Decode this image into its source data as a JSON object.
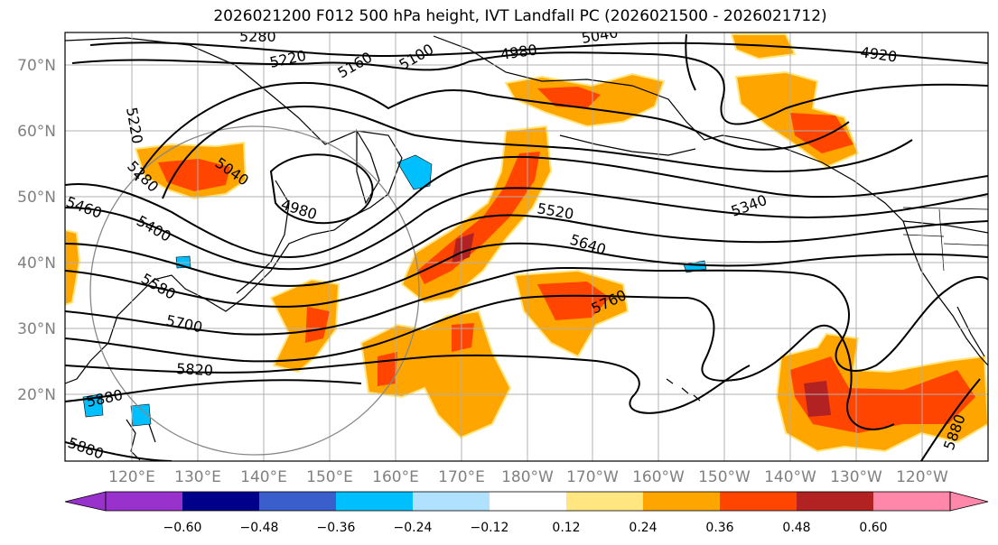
{
  "title": "2026021200 F012 500 hPa height, IVT Landfall PC (2026021500 - 2026021712)",
  "map": {
    "lat_labels": [
      "70°N",
      "60°N",
      "50°N",
      "40°N",
      "30°N",
      "20°N"
    ],
    "lon_labels": [
      "120°E",
      "130°E",
      "140°E",
      "150°E",
      "160°E",
      "170°E",
      "180°W",
      "170°W",
      "160°W",
      "150°W",
      "140°W",
      "130°W",
      "120°W"
    ],
    "contour_labels": [
      "5280",
      "5220",
      "5160",
      "5100",
      "4980",
      "5040",
      "4920",
      "5220",
      "5040",
      "5280",
      "5460",
      "4980",
      "5400",
      "5520",
      "5580",
      "5640",
      "5700",
      "5340",
      "5760",
      "5820",
      "5880",
      "5880",
      "5880"
    ]
  },
  "colorbar": {
    "ticks": [
      "−0.60",
      "−0.48",
      "−0.36",
      "−0.24",
      "−0.12",
      "0.12",
      "0.24",
      "0.36",
      "0.48",
      "0.60"
    ],
    "colors": [
      "#9932cc",
      "#00008b",
      "#3a5fcd",
      "#00bfff",
      "#b0e2ff",
      "#ffffff",
      "#ffe680",
      "#ffa500",
      "#ff4500",
      "#b22222",
      "#ff88aa",
      "#ff88aa"
    ]
  }
}
